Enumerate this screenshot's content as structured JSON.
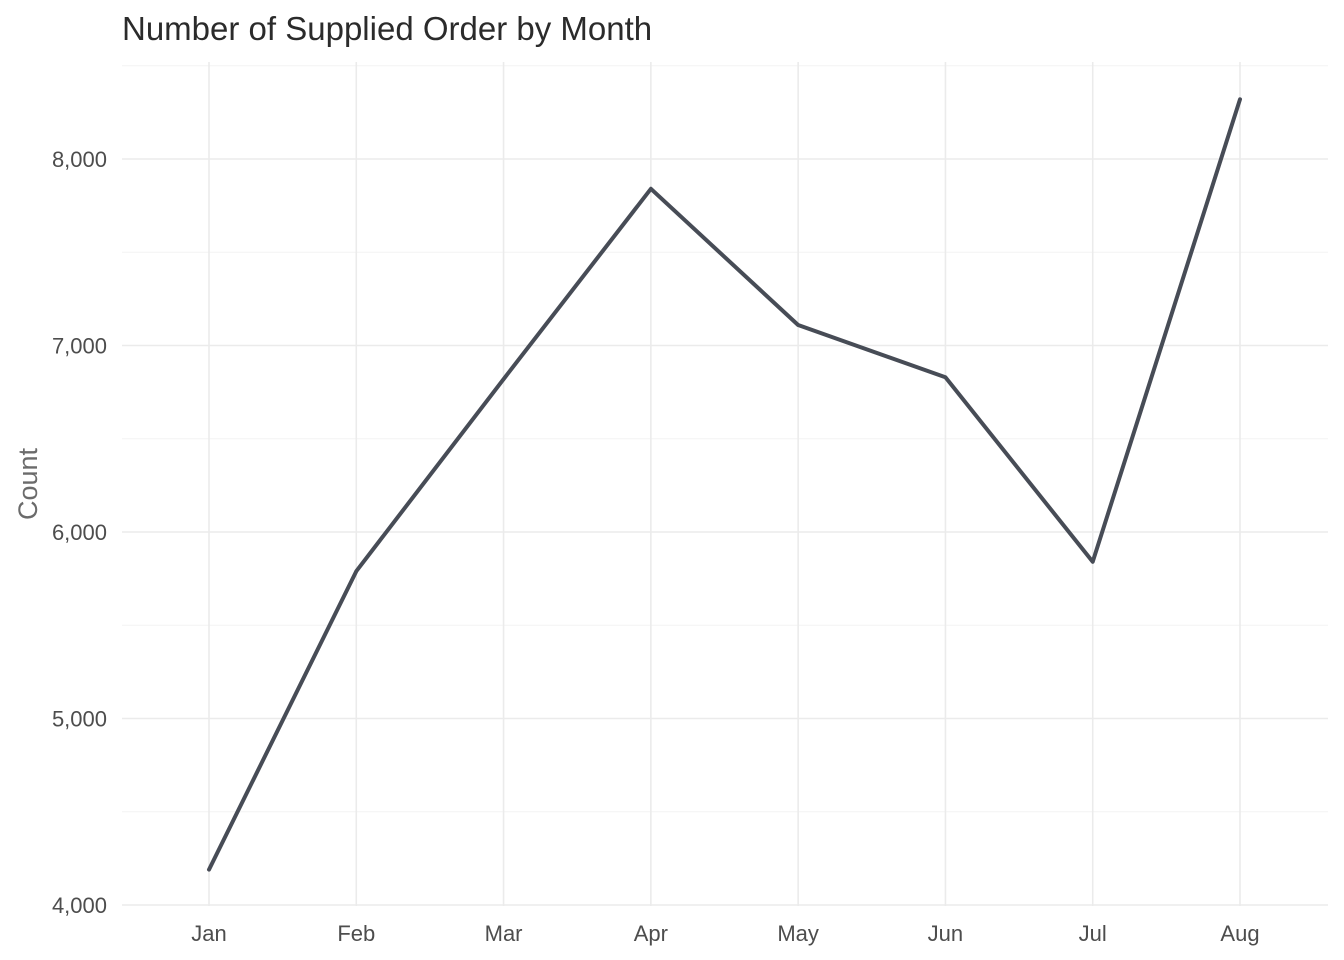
{
  "chart_data": {
    "type": "line",
    "title": "Number of Supplied Order by Month",
    "xlabel": "",
    "ylabel": "Count",
    "categories": [
      "Jan",
      "Feb",
      "Mar",
      "Apr",
      "May",
      "Jun",
      "Jul",
      "Aug"
    ],
    "series": [
      {
        "values": [
          4190,
          5790,
          6820,
          7840,
          7110,
          6830,
          5840,
          8320
        ]
      }
    ],
    "ylim": [
      4000,
      8500
    ],
    "yticks": [
      4000,
      5000,
      6000,
      7000,
      8000
    ],
    "ytick_labels": [
      "4,000",
      "5,000",
      "6,000",
      "7,000",
      "8,000"
    ],
    "grid": true,
    "legend": "none",
    "colors": {
      "line": "#474c56"
    }
  }
}
